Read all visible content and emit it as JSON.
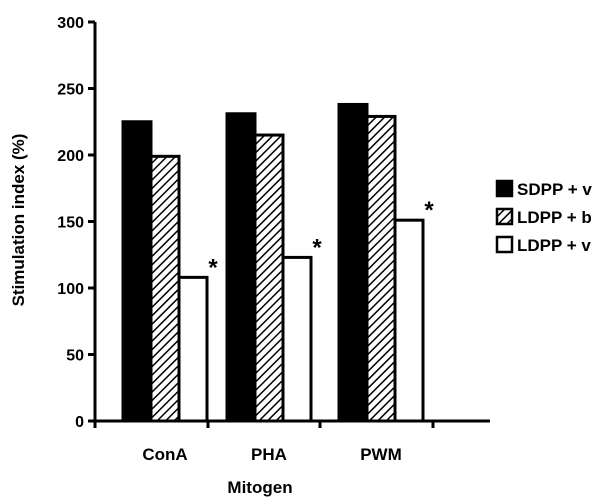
{
  "chart_data": {
    "type": "bar",
    "title": "",
    "xlabel": "Mitogen",
    "ylabel": "Stimulation index (%)",
    "ylim": [
      0,
      300
    ],
    "yticks": [
      0,
      50,
      100,
      150,
      200,
      250,
      300
    ],
    "categories": [
      "ConA",
      "PHA",
      "PWM"
    ],
    "grid": false,
    "legend_position": "right",
    "series": [
      {
        "name": "SDPP + v",
        "values": [
          225,
          231,
          238
        ],
        "fill": "solid",
        "color": "#000000"
      },
      {
        "name": "LDPP + b",
        "values": [
          199,
          215,
          229
        ],
        "fill": "hatched",
        "color": "#000000"
      },
      {
        "name": "LDPP + v",
        "values": [
          108,
          123,
          151
        ],
        "fill": "empty",
        "color": "#ffffff"
      }
    ],
    "annotations": [
      {
        "text": "*",
        "category": "ConA",
        "series": "LDPP + v"
      },
      {
        "text": "*",
        "category": "PHA",
        "series": "LDPP + v"
      },
      {
        "text": "*",
        "category": "PWM",
        "series": "LDPP + v"
      }
    ]
  }
}
